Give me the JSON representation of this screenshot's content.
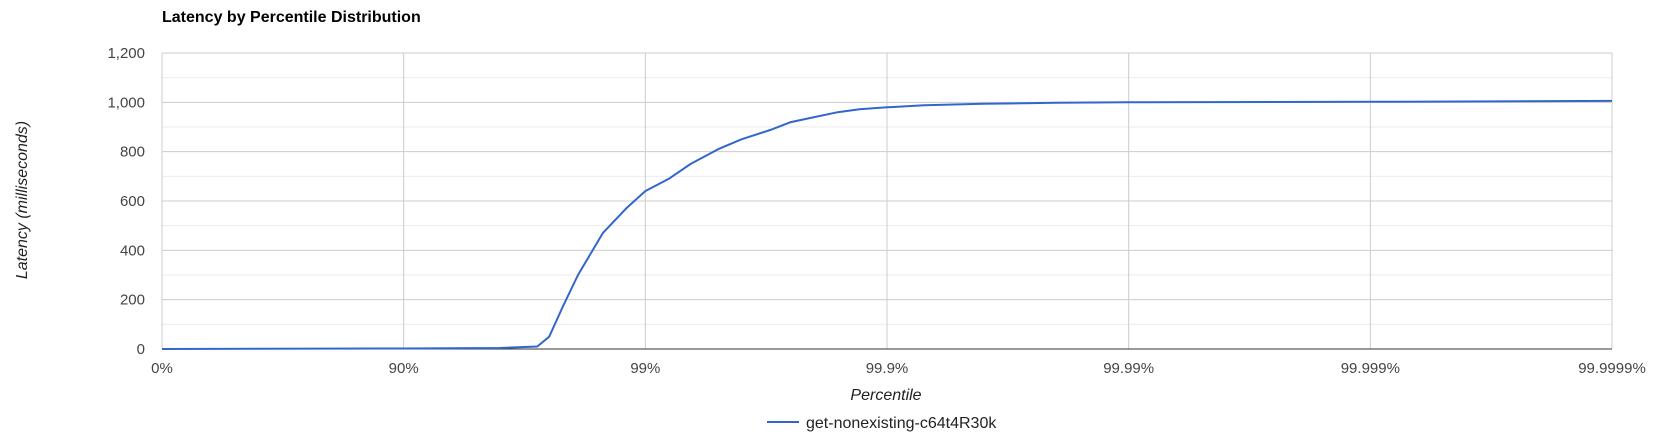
{
  "chart_data": {
    "type": "line",
    "title": "Latency by Percentile Distribution",
    "xlabel": "Percentile",
    "ylabel": "Latency (milliseconds)",
    "ylim": [
      0,
      1200
    ],
    "y_ticks": [
      "0",
      "200",
      "400",
      "600",
      "800",
      "1,000",
      "1,200"
    ],
    "x_scale": "log-percentile",
    "x_ticks": [
      "0%",
      "90%",
      "99%",
      "99.9%",
      "99.99%",
      "99.999%",
      "99.9999%"
    ],
    "grid": true,
    "legend_position": "bottom",
    "colors": {
      "series": "#3366cc",
      "grid_major": "#cccccc",
      "grid_minor": "#ebebeb",
      "axis": "#333333"
    },
    "series": [
      {
        "name": "get-nonexisting-c64t4R30k",
        "points": [
          {
            "x": "0%",
            "y": 0
          },
          {
            "x": "90%",
            "y": 2
          },
          {
            "x": "96%",
            "y": 4
          },
          {
            "x": "97.2%",
            "y": 10
          },
          {
            "x": "97.5%",
            "y": 50
          },
          {
            "x": "97.8%",
            "y": 170
          },
          {
            "x": "98.1%",
            "y": 300
          },
          {
            "x": "98.5%",
            "y": 470
          },
          {
            "x": "98.8%",
            "y": 570
          },
          {
            "x": "99%",
            "y": 640
          },
          {
            "x": "99.2%",
            "y": 690
          },
          {
            "x": "99.35%",
            "y": 750
          },
          {
            "x": "99.5%",
            "y": 810
          },
          {
            "x": "99.6%",
            "y": 850
          },
          {
            "x": "99.7%",
            "y": 890
          },
          {
            "x": "99.75%",
            "y": 920
          },
          {
            "x": "99.8%",
            "y": 940
          },
          {
            "x": "99.84%",
            "y": 960
          },
          {
            "x": "99.87%",
            "y": 972
          },
          {
            "x": "99.9%",
            "y": 980
          },
          {
            "x": "99.93%",
            "y": 988
          },
          {
            "x": "99.96%",
            "y": 994
          },
          {
            "x": "99.98%",
            "y": 998
          },
          {
            "x": "99.99%",
            "y": 1000
          },
          {
            "x": "99.999%",
            "y": 1002
          },
          {
            "x": "99.9999%",
            "y": 1006
          }
        ]
      }
    ]
  }
}
